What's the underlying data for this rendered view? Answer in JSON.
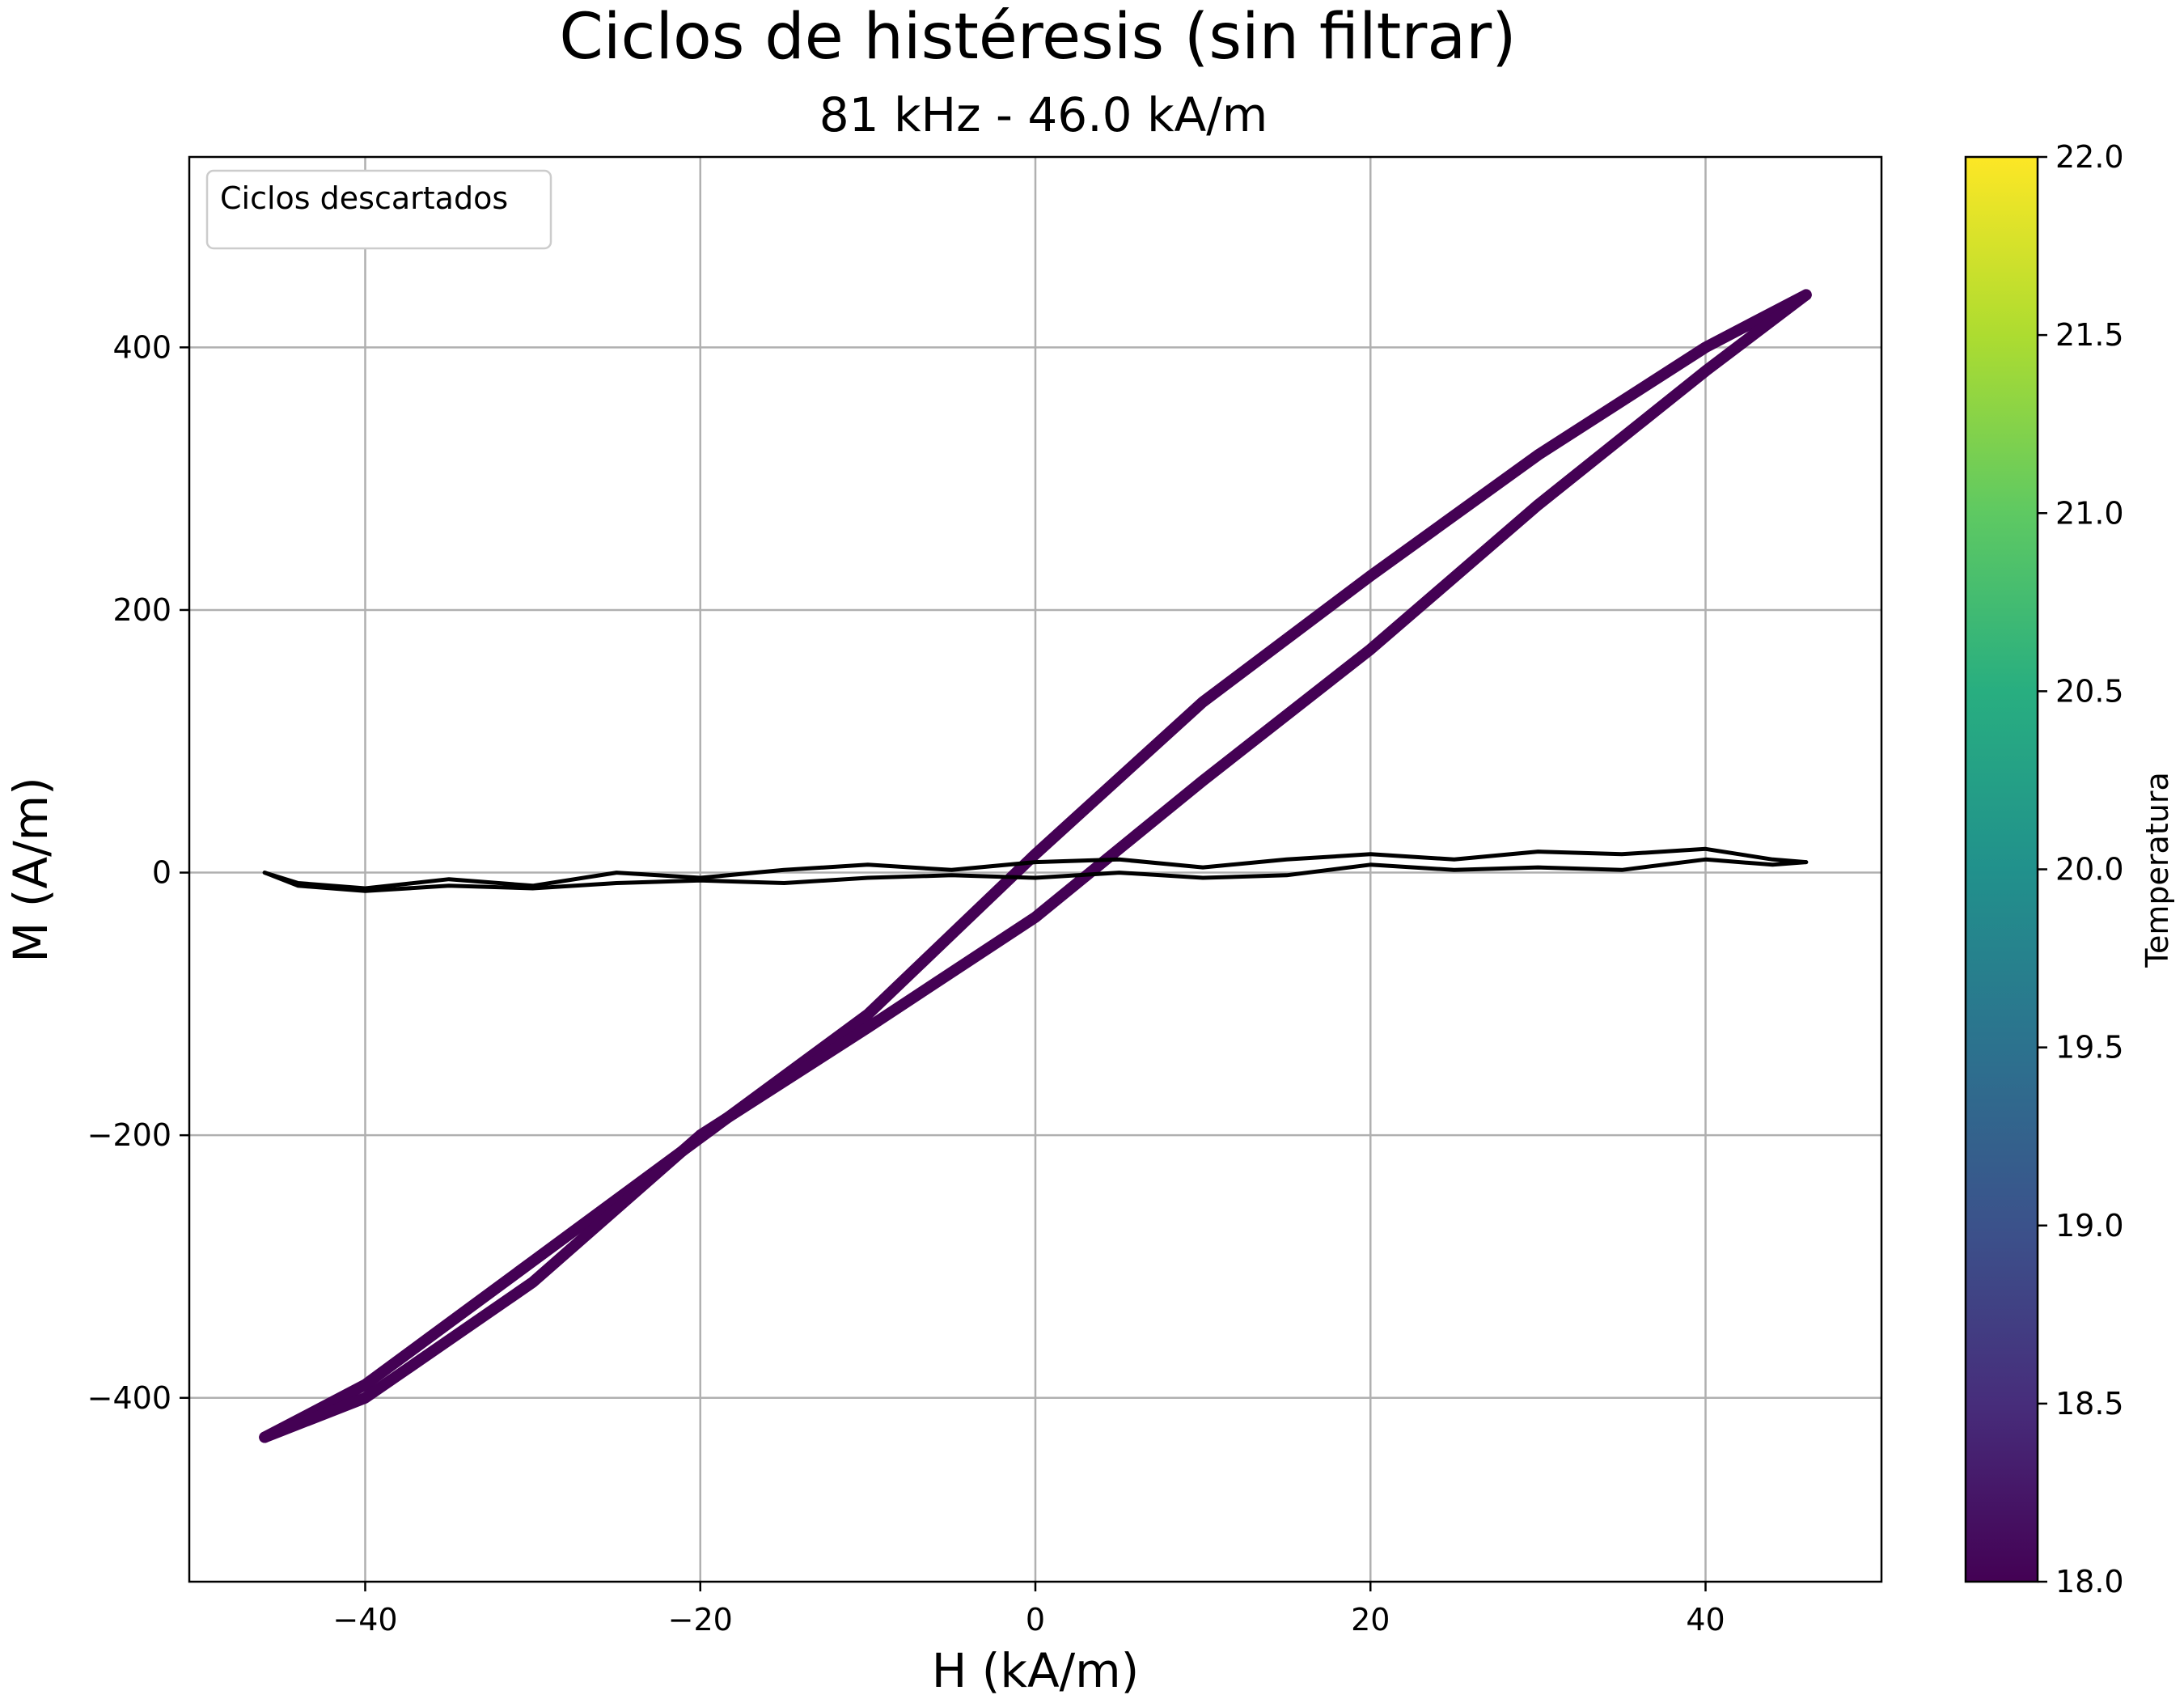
{
  "chart_data": {
    "type": "line",
    "title": "Ciclos de histéresis (sin filtrar)",
    "subtitle": "81 kHz - 46.0 kA/m",
    "xlabel": "H (kA/m)",
    "ylabel": "M (A/m)",
    "xlim": [
      -50.5,
      50.5
    ],
    "ylim": [
      -540,
      545
    ],
    "xticks": [
      -40,
      -20,
      0,
      20,
      40
    ],
    "yticks": [
      -400,
      -200,
      0,
      200,
      400
    ],
    "x_tick_labels": [
      "−40",
      "−20",
      "0",
      "20",
      "40"
    ],
    "y_tick_labels": [
      "−400",
      "−200",
      "0",
      "200",
      "400"
    ],
    "grid": true,
    "legend": {
      "placement": "top-left",
      "title": "Ciclos descartados"
    },
    "colorbar": {
      "label": "Temperatura",
      "colormap": "viridis",
      "range": [
        18.0,
        22.0
      ],
      "ticks": [
        18.0,
        18.5,
        19.0,
        19.5,
        20.0,
        20.5,
        21.0,
        21.5,
        22.0
      ],
      "tick_labels": [
        "18.0",
        "18.5",
        "19.0",
        "19.5",
        "20.0",
        "20.5",
        "21.0",
        "21.5",
        "22.0"
      ]
    },
    "series": [
      {
        "color": "#440154",
        "loop": "upper",
        "x": [
          -46,
          -40,
          -30,
          -20,
          -10,
          0,
          10,
          20,
          30,
          40,
          46
        ],
        "y": [
          -430,
          -390,
          -296,
          -202,
          -108,
          14,
          130,
          226,
          318,
          400,
          440
        ]
      },
      {
        "color": "#440154",
        "loop": "lower",
        "x": [
          -46,
          -40,
          -30,
          -20,
          -10,
          0,
          10,
          20,
          30,
          40,
          46
        ],
        "y": [
          -430,
          -400,
          -312,
          -200,
          -118,
          -34,
          70,
          170,
          280,
          382,
          440
        ]
      },
      {
        "color": "#000000",
        "loop": "discarded-upper",
        "x": [
          -46,
          -44,
          -40,
          -35,
          -30,
          -25,
          -20,
          -15,
          -10,
          -5,
          0,
          5,
          10,
          15,
          20,
          25,
          30,
          35,
          40,
          44,
          46
        ],
        "y": [
          0,
          -8,
          -12,
          -5,
          -10,
          0,
          -4,
          2,
          6,
          2,
          8,
          10,
          4,
          10,
          14,
          10,
          16,
          14,
          18,
          10,
          8
        ]
      },
      {
        "color": "#000000",
        "loop": "discarded-lower",
        "x": [
          -46,
          -44,
          -40,
          -35,
          -30,
          -25,
          -20,
          -15,
          -10,
          -5,
          0,
          5,
          10,
          15,
          20,
          25,
          30,
          35,
          40,
          44,
          46
        ],
        "y": [
          0,
          -10,
          -14,
          -10,
          -12,
          -8,
          -6,
          -8,
          -4,
          -2,
          -4,
          0,
          -4,
          -2,
          6,
          2,
          4,
          2,
          10,
          6,
          8
        ]
      }
    ]
  }
}
